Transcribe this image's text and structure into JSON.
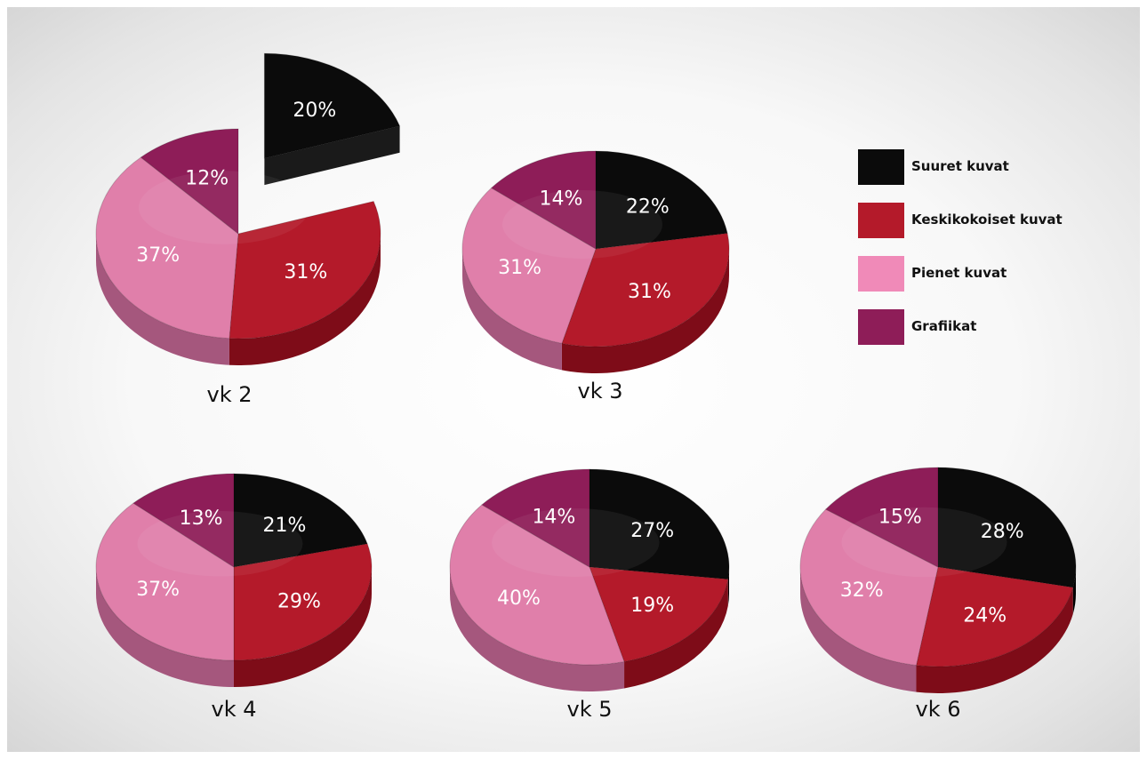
{
  "chart_data": {
    "type": "pie",
    "series_names": [
      "Suuret kuvat",
      "Keskikokoiset kuvat",
      "Pienet kuvat",
      "Grafiikat"
    ],
    "colors": [
      "#0b0b0b",
      "#b41a2a",
      "#e07faa",
      "#8e1d58"
    ],
    "legend_position": "top-right",
    "pies": [
      {
        "label": "vk 2",
        "values": [
          20,
          31,
          37,
          12
        ],
        "value_labels": [
          "20%",
          "31%",
          "37%",
          "12%"
        ],
        "exploded": [
          0
        ]
      },
      {
        "label": "vk 3",
        "values": [
          22,
          31,
          31,
          14
        ],
        "value_labels": [
          "22%",
          "31%",
          "31%",
          "14%"
        ],
        "exploded": []
      },
      {
        "label": "vk 4",
        "values": [
          21,
          29,
          37,
          13
        ],
        "value_labels": [
          "21%",
          "29%",
          "37%",
          "13%"
        ],
        "exploded": []
      },
      {
        "label": "vk 5",
        "values": [
          27,
          19,
          40,
          14
        ],
        "value_labels": [
          "27%",
          "19%",
          "40%",
          "14%"
        ],
        "exploded": []
      },
      {
        "label": "vk 6",
        "values": [
          28,
          24,
          32,
          15
        ],
        "value_labels": [
          "28%",
          "24%",
          "32%",
          "15%"
        ],
        "exploded": []
      }
    ]
  }
}
